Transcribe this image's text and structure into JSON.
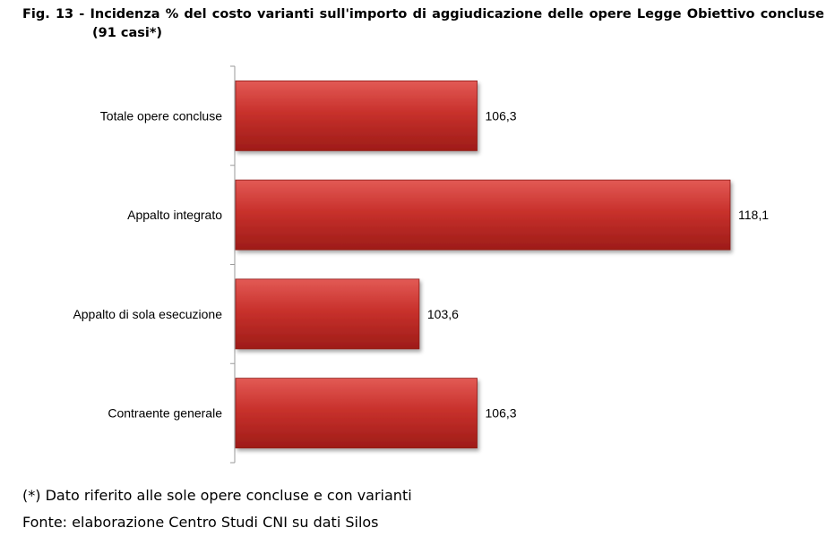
{
  "title": {
    "line1_words": [
      "Fig.",
      "13",
      "-",
      "Incidenza",
      "%",
      "del",
      "costo",
      "varianti",
      "sull'importo",
      "di",
      "aggiudicazione",
      "delle",
      "opere",
      "Legge",
      "Obiettivo",
      "concluse"
    ],
    "line2": "(91 casi*)"
  },
  "footnote": "(*) Dato riferito alle sole opere concluse e con varianti",
  "source": "Fonte: elaborazione Centro Studi CNI su dati Silos",
  "chart_data": {
    "type": "bar",
    "orientation": "horizontal",
    "title": "Fig. 13 - Incidenza % del costo varianti sull'importo di aggiudicazione delle opere Legge Obiettivo concluse (91 casi*)",
    "categories": [
      "Totale opere concluse",
      "Appalto integrato",
      "Appalto di sola esecuzione",
      "Contraente generale"
    ],
    "values": [
      106.3,
      118.1,
      103.6,
      106.3
    ],
    "value_labels": [
      "106,3",
      "118,1",
      "103,6",
      "106,3"
    ],
    "xlim": [
      95,
      120
    ],
    "bar_color": "#c0392b",
    "xaxis_visible": false,
    "grid": false,
    "legend": "none"
  }
}
